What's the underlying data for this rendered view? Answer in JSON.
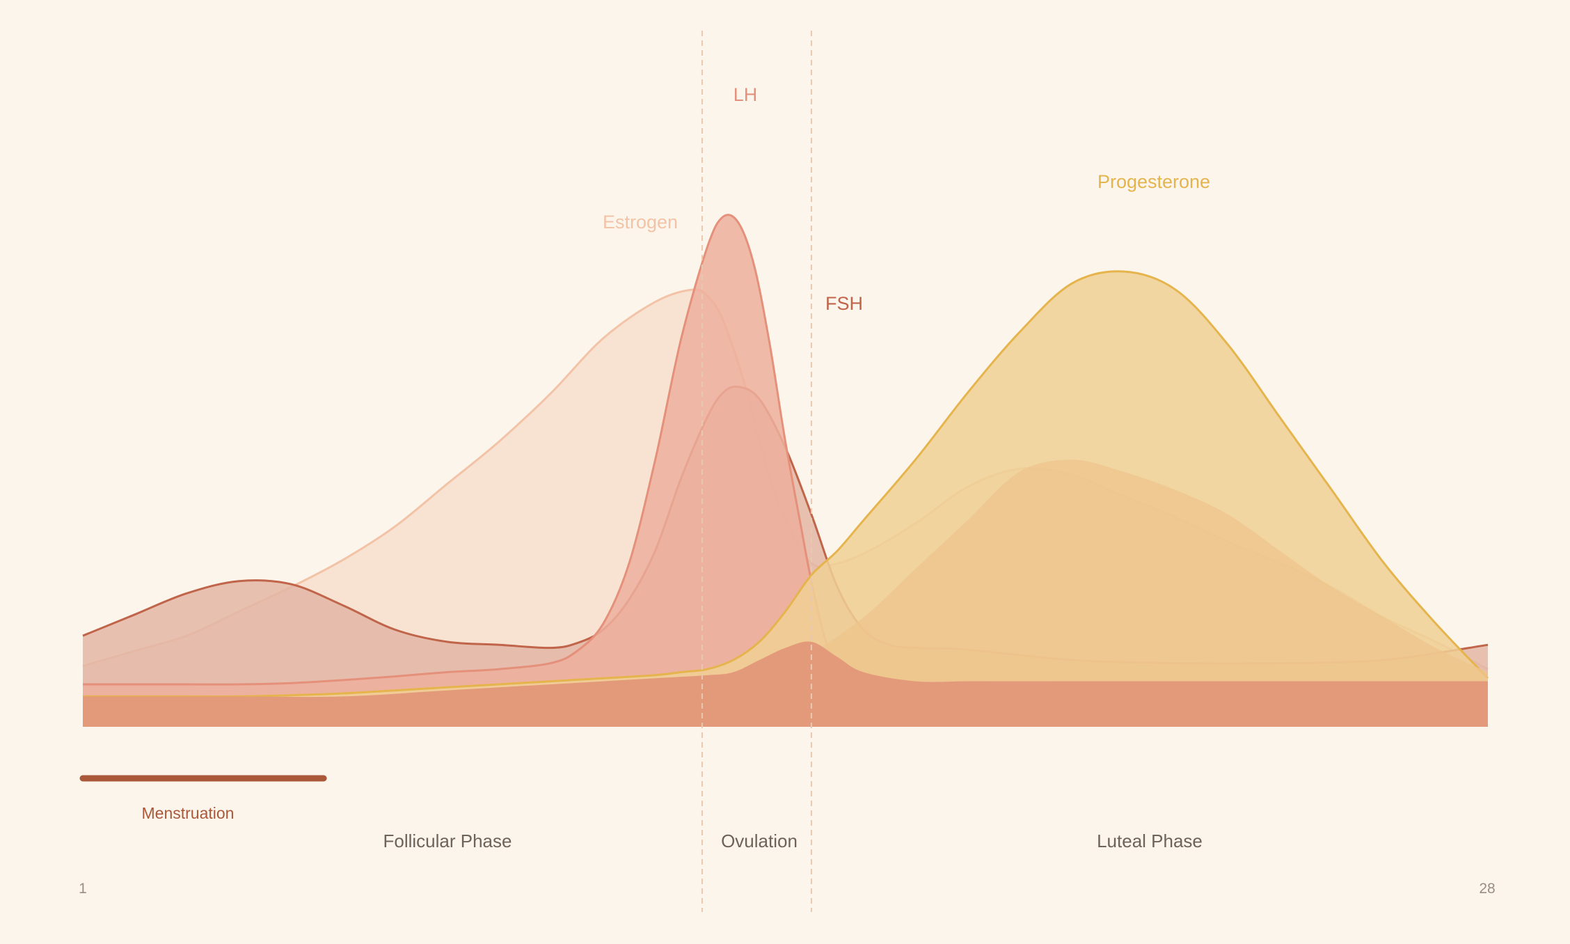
{
  "chart_data": {
    "type": "area",
    "x_range": [
      1,
      28
    ],
    "y_range": [
      0,
      100
    ],
    "grid": false,
    "legend": "none",
    "series": [
      {
        "name": "Estrogen",
        "color": "#F2C3A6",
        "fill": "#F7DFCF",
        "x": [
          1,
          2,
          3,
          4,
          5,
          6,
          7,
          8,
          9,
          10,
          11,
          12,
          12.7,
          13,
          13.3,
          13.7,
          14,
          14.3,
          14.7,
          15,
          15.3,
          16,
          17,
          18,
          19,
          20,
          21,
          22,
          23,
          24,
          25,
          26,
          27,
          28
        ],
        "values": [
          10,
          12.5,
          15,
          19,
          23,
          27.5,
          33,
          40,
          47,
          55,
          64,
          70,
          72,
          71,
          67,
          57,
          47,
          38.5,
          30.5,
          27,
          26.5,
          28.5,
          33.5,
          39.5,
          42.5,
          41.5,
          38,
          34.5,
          30.5,
          27,
          23,
          18,
          14,
          9.5
        ]
      },
      {
        "name": "FSH",
        "color": "#C0644A",
        "fill": "#E3B6A4",
        "x": [
          1,
          2,
          3,
          4,
          5,
          6,
          7,
          8,
          9,
          10,
          10.5,
          11,
          11.5,
          12,
          12.5,
          13,
          13.3,
          13.6,
          14,
          14.5,
          15,
          15.5,
          16,
          16.5,
          17,
          18,
          20,
          22,
          24,
          26,
          28
        ],
        "values": [
          15,
          18.5,
          22,
          24,
          23.5,
          20,
          16,
          14,
          13.5,
          13,
          13.8,
          16,
          21,
          29,
          41,
          51,
          55,
          56,
          54,
          46,
          35,
          23,
          16,
          13.5,
          13,
          12.7,
          11,
          10.5,
          10.5,
          11,
          13.5
        ]
      },
      {
        "name": "LH",
        "color": "#E4907A",
        "fill": "#EDAF9C",
        "x": [
          1,
          2,
          3,
          4,
          5,
          6,
          7,
          8,
          9,
          10,
          10.5,
          11,
          11.5,
          12,
          12.5,
          13,
          13.3,
          13.6,
          13.9,
          14.2,
          14.5,
          14.8,
          15,
          15.3,
          15.6,
          16,
          16.5,
          17,
          17.5,
          18,
          20,
          22,
          24,
          26,
          28
        ],
        "values": [
          7,
          7,
          7,
          7,
          7.2,
          7.7,
          8.3,
          9,
          9.5,
          10.5,
          12.5,
          17,
          27,
          44,
          64,
          79,
          84,
          83,
          76,
          63,
          47,
          33,
          24,
          13.5,
          9,
          7.2,
          6.5,
          7.5,
          7.8,
          7.5,
          7.5,
          7.5,
          7.5,
          7.5,
          7.5
        ]
      },
      {
        "name": "Progesterone",
        "color": "#E5B44C",
        "fill": "#F0D094",
        "x": [
          1,
          2,
          3,
          4,
          5,
          6,
          7,
          8,
          9,
          10,
          11,
          12,
          12.5,
          13,
          13.5,
          14,
          14.5,
          15,
          15.5,
          16,
          17,
          18,
          19,
          20,
          21,
          22,
          23,
          24,
          25,
          26,
          27,
          28
        ],
        "values": [
          5,
          5,
          5,
          5,
          5.2,
          5.5,
          6,
          6.5,
          7,
          7.5,
          8,
          8.5,
          9,
          9.5,
          11,
          14,
          19,
          25,
          29,
          34,
          44,
          55,
          65,
          73,
          75,
          72,
          63,
          51,
          39,
          27,
          17,
          8
        ]
      },
      {
        "name": "",
        "color": "#EDC48C",
        "fill": "#EDC48C",
        "x": [
          15,
          16,
          17,
          18,
          19,
          20,
          21,
          22,
          23,
          24,
          25,
          26,
          27,
          28
        ],
        "values": [
          12,
          18,
          26,
          34,
          42,
          44,
          42,
          39,
          35,
          29,
          23,
          18,
          13,
          9
        ]
      }
    ],
    "base_band": {
      "color": "#E39A7A",
      "x": [
        1,
        2,
        4,
        6,
        8,
        10,
        11,
        12,
        13,
        13.5,
        14,
        14.5,
        15,
        15.5,
        16,
        17,
        18,
        19,
        20,
        22,
        24,
        26,
        28
      ],
      "values": [
        5,
        5,
        5,
        5,
        6,
        7,
        7.5,
        8,
        8.5,
        9,
        11,
        13,
        14,
        11.5,
        9,
        7.5,
        7.5,
        7.5,
        7.5,
        7.5,
        7.5,
        7.5,
        7.5
      ]
    },
    "phase_boundaries": [
      12.9,
      15
    ],
    "phases": [
      {
        "label": "Follicular Phase",
        "x": 7.85
      },
      {
        "label": "Ovulation",
        "x": 14.0
      },
      {
        "label": "Luteal Phase",
        "x": 21.1
      }
    ],
    "menstruation": {
      "label": "Menstruation",
      "start": 1,
      "end": 5
    }
  },
  "labels": {
    "estrogen": "Estrogen",
    "lh": "LH",
    "fsh": "FSH",
    "progesterone": "Progesterone"
  },
  "ticks": {
    "start": "1",
    "end": "28"
  }
}
